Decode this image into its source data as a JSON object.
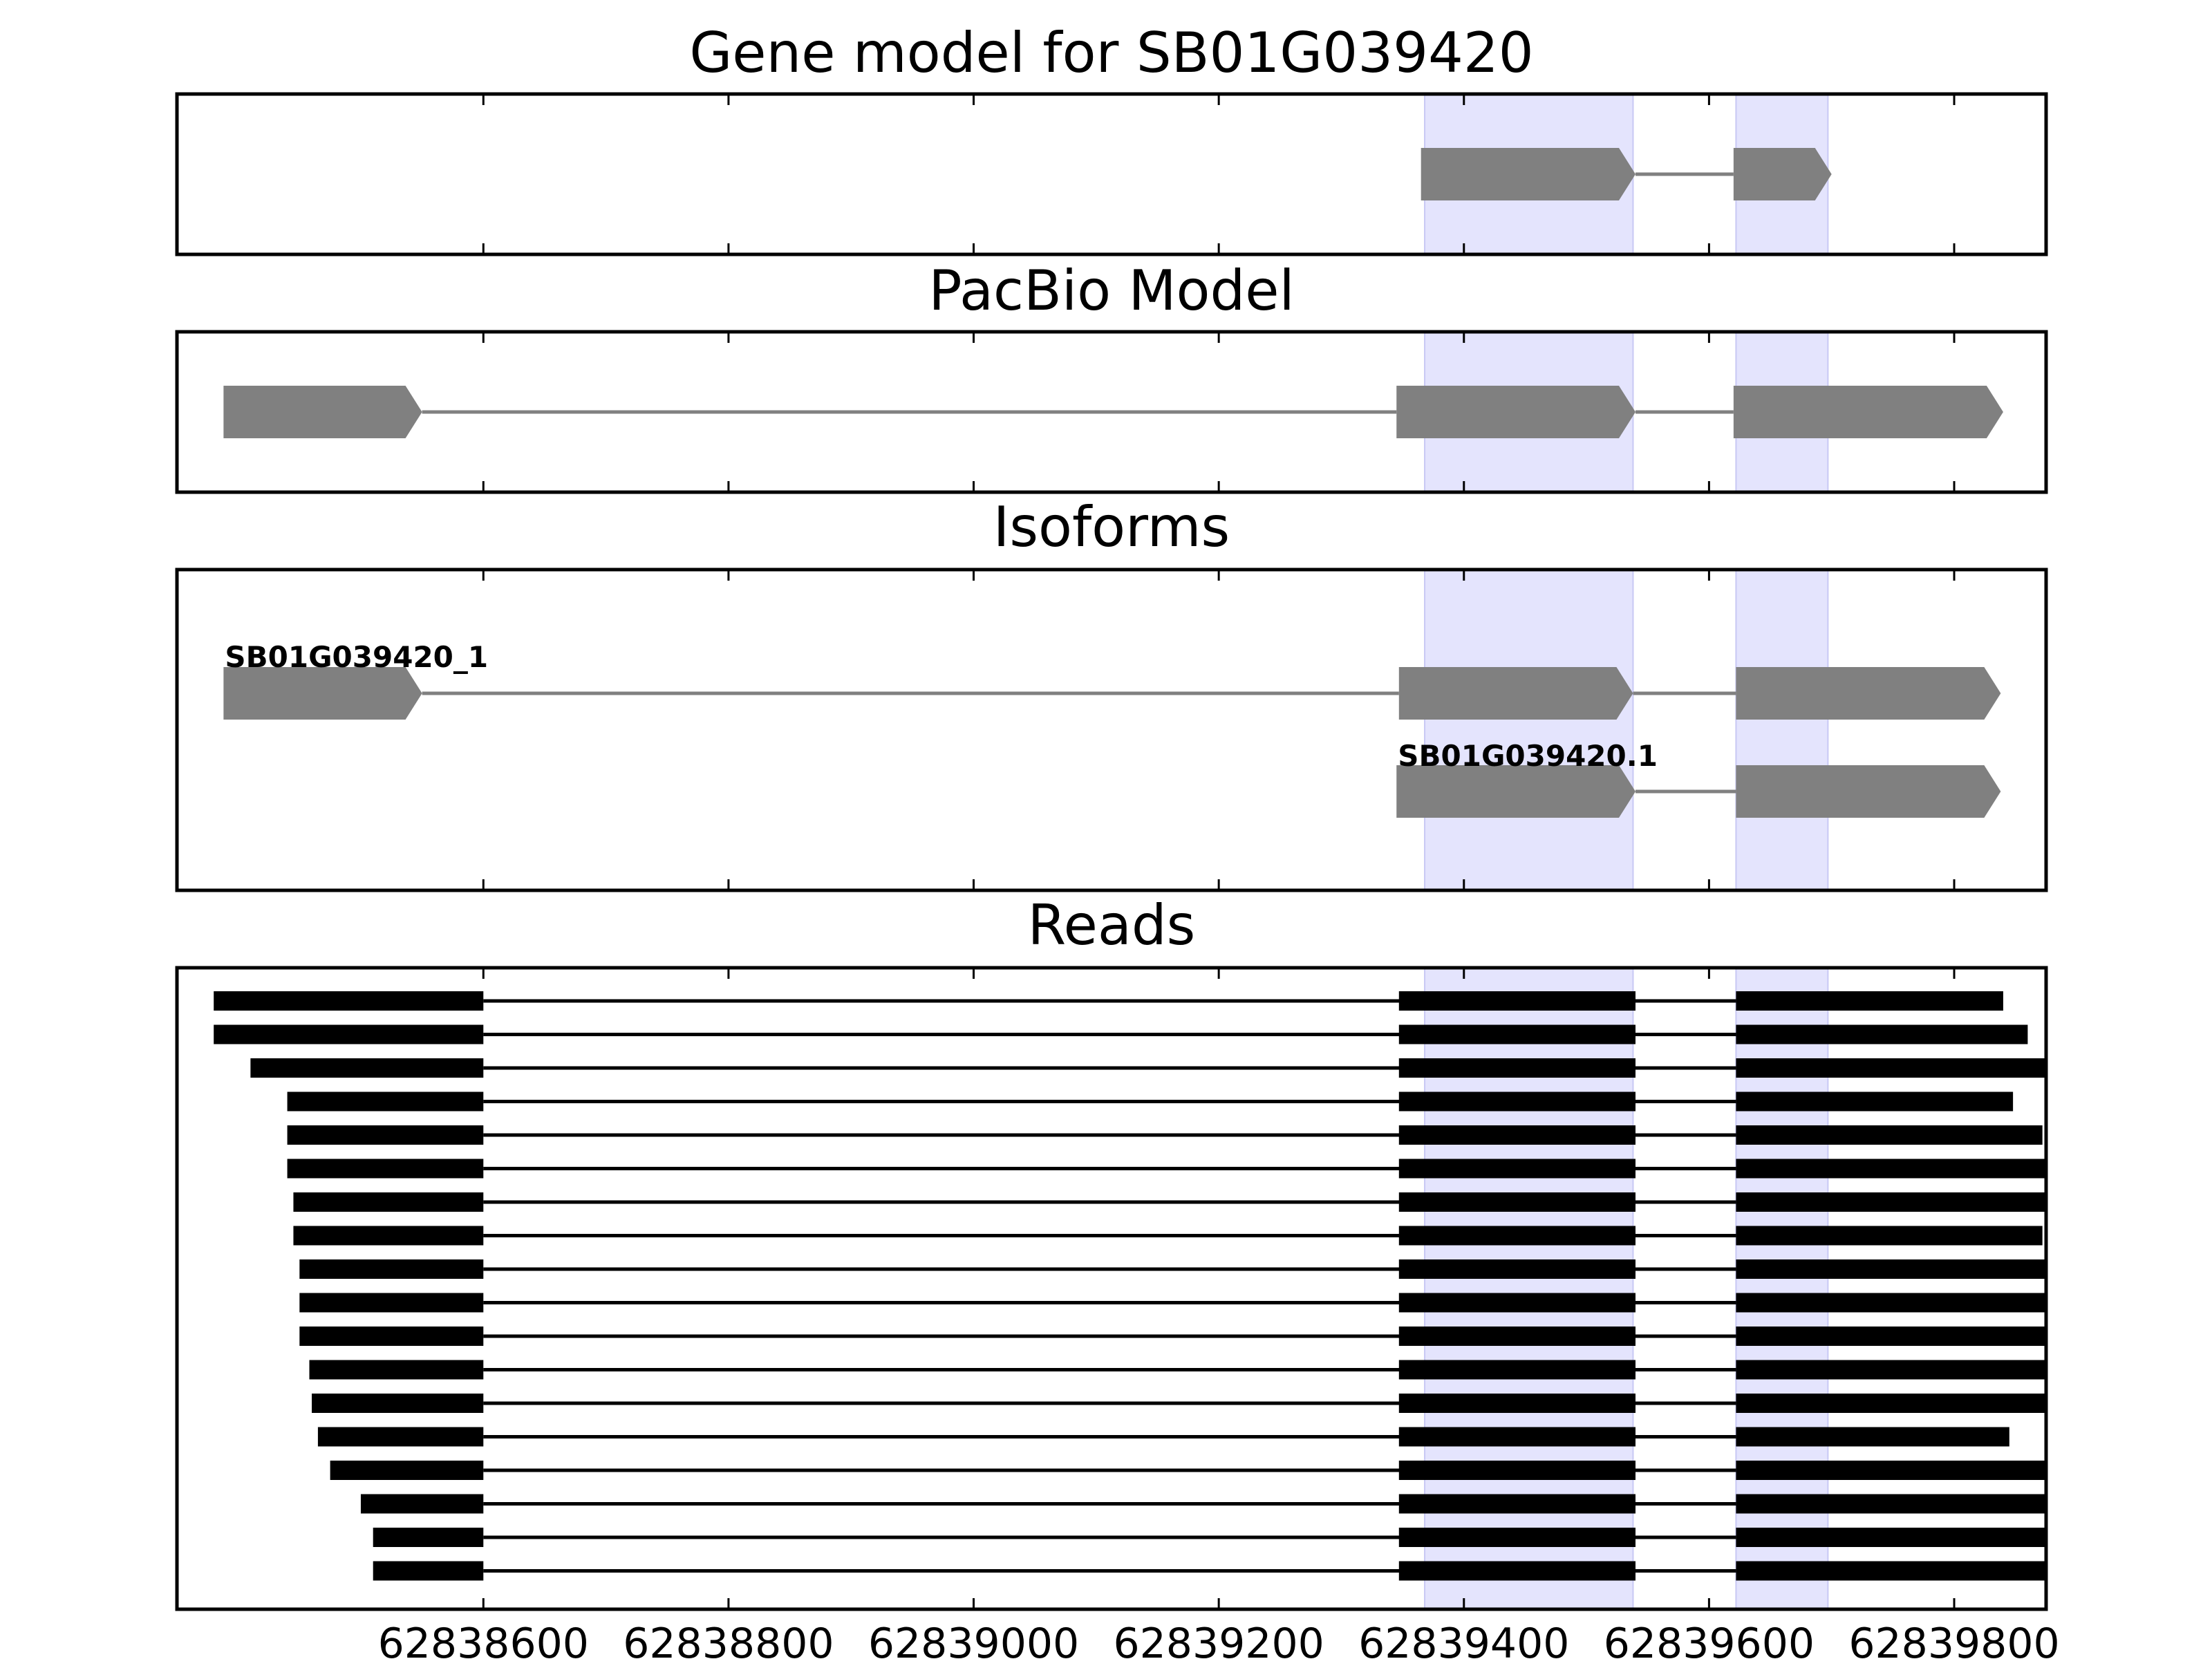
{
  "chart_data": {
    "type": "gene-track",
    "xlim": [
      62838350,
      62839875
    ],
    "xticks": [
      62838600,
      62838800,
      62839000,
      62839200,
      62839400,
      62839600,
      62839800
    ],
    "xtick_labels": [
      "62838600",
      "62838800",
      "62839000",
      "62839200",
      "62839400",
      "62839600",
      "62839800"
    ],
    "grid": false,
    "colors": {
      "feature": "#808080",
      "intron": "#808080",
      "highlight": "#e4e4fd",
      "read": "#000000",
      "frame": "#000000"
    },
    "highlight_regions": [
      [
        62839368,
        62839538
      ],
      [
        62839622,
        62839697
      ]
    ],
    "panels": [
      {
        "title": "Gene model for SB01G039420",
        "tracks": [
          {
            "label": "",
            "exons": [
              [
                62839365,
                62839540
              ],
              [
                62839620,
                62839700
              ]
            ]
          }
        ]
      },
      {
        "title": "PacBio Model",
        "tracks": [
          {
            "label": "",
            "exons": [
              [
                62838388,
                62838550
              ],
              [
                62839345,
                62839540
              ],
              [
                62839620,
                62839840
              ]
            ]
          }
        ]
      },
      {
        "title": "Isoforms",
        "tracks": [
          {
            "label": "SB01G039420_1",
            "exons": [
              [
                62838388,
                62838550
              ],
              [
                62839347,
                62839538
              ],
              [
                62839622,
                62839838
              ]
            ]
          },
          {
            "label": "SB01G039420.1",
            "exons": [
              [
                62839345,
                62839540
              ],
              [
                62839622,
                62839838
              ]
            ]
          }
        ]
      },
      {
        "title": "Reads",
        "reads": [
          [
            62838380,
            62838600,
            62839347,
            62839540,
            62839622,
            62839840
          ],
          [
            62838380,
            62838600,
            62839347,
            62839540,
            62839622,
            62839860
          ],
          [
            62838410,
            62838600,
            62839347,
            62839540,
            62839622,
            62839875
          ],
          [
            62838440,
            62838600,
            62839347,
            62839540,
            62839622,
            62839848
          ],
          [
            62838440,
            62838600,
            62839347,
            62839540,
            62839622,
            62839872
          ],
          [
            62838440,
            62838600,
            62839347,
            62839540,
            62839622,
            62839875
          ],
          [
            62838445,
            62838600,
            62839347,
            62839540,
            62839622,
            62839875
          ],
          [
            62838445,
            62838600,
            62839347,
            62839540,
            62839622,
            62839872
          ],
          [
            62838450,
            62838600,
            62839347,
            62839540,
            62839622,
            62839875
          ],
          [
            62838450,
            62838600,
            62839347,
            62839540,
            62839622,
            62839875
          ],
          [
            62838450,
            62838600,
            62839347,
            62839540,
            62839622,
            62839875
          ],
          [
            62838458,
            62838600,
            62839347,
            62839540,
            62839622,
            62839875
          ],
          [
            62838460,
            62838600,
            62839347,
            62839540,
            62839622,
            62839875
          ],
          [
            62838465,
            62838600,
            62839347,
            62839540,
            62839622,
            62839845
          ],
          [
            62838475,
            62838600,
            62839347,
            62839540,
            62839622,
            62839875
          ],
          [
            62838500,
            62838600,
            62839347,
            62839540,
            62839622,
            62839875
          ],
          [
            62838510,
            62838600,
            62839347,
            62839540,
            62839622,
            62839875
          ],
          [
            62838510,
            62838600,
            62839347,
            62839540,
            62839622,
            62839875
          ]
        ]
      }
    ]
  }
}
